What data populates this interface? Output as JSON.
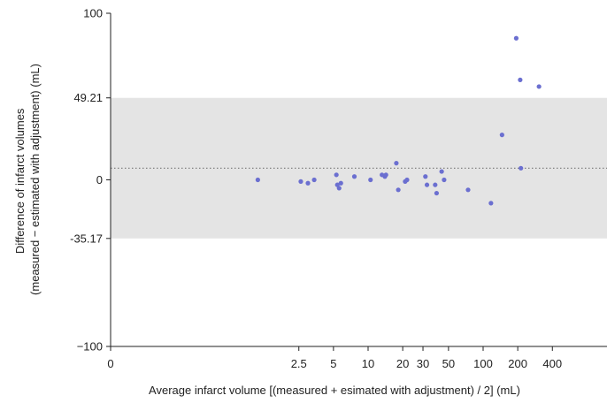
{
  "chart_data": {
    "type": "scatter",
    "title": "",
    "xlabel": "Average infarct volume [(measured + esimated with adjustment) / 2] (mL)",
    "ylabel_lines": [
      "Difference of infarct volumes",
      "(measured − estimated with adjustment) (mL)"
    ],
    "x_scale": "log",
    "x_ticks": [
      {
        "value": 0,
        "label": "0"
      },
      {
        "value": 2.5,
        "label": "2.5"
      },
      {
        "value": 5,
        "label": "5"
      },
      {
        "value": 10,
        "label": "10"
      },
      {
        "value": 20,
        "label": "20"
      },
      {
        "value": 30,
        "label": "30"
      },
      {
        "value": 50,
        "label": "50"
      },
      {
        "value": 100,
        "label": "100"
      },
      {
        "value": 200,
        "label": "200"
      },
      {
        "value": 400,
        "label": "400"
      }
    ],
    "y_ticks": [
      {
        "value": 100,
        "label": "100"
      },
      {
        "value": 49.21,
        "label": "49.21"
      },
      {
        "value": 0,
        "label": "0"
      },
      {
        "value": -35.17,
        "label": "-35.17"
      },
      {
        "value": -100,
        "label": "−100"
      }
    ],
    "ylim": [
      -100,
      100
    ],
    "limits_of_agreement": {
      "upper": 49.21,
      "lower": -35.17
    },
    "mean_difference": 7,
    "colors": {
      "points": "#6b6fd0",
      "band": "#e4e4e4",
      "mean_line": "#777777",
      "axis": "#222222"
    },
    "series": [
      {
        "points": [
          {
            "x": 1.1,
            "y": 0
          },
          {
            "x": 2.6,
            "y": -1
          },
          {
            "x": 3.0,
            "y": -2
          },
          {
            "x": 3.4,
            "y": 0
          },
          {
            "x": 5.3,
            "y": 3
          },
          {
            "x": 5.4,
            "y": -3
          },
          {
            "x": 5.6,
            "y": -5
          },
          {
            "x": 5.8,
            "y": -2
          },
          {
            "x": 7.6,
            "y": 2
          },
          {
            "x": 10.5,
            "y": 0
          },
          {
            "x": 13.2,
            "y": 3
          },
          {
            "x": 14.0,
            "y": 2
          },
          {
            "x": 14.3,
            "y": 3
          },
          {
            "x": 17.6,
            "y": 10
          },
          {
            "x": 18.3,
            "y": -6
          },
          {
            "x": 21.0,
            "y": -1
          },
          {
            "x": 21.8,
            "y": 0
          },
          {
            "x": 31.5,
            "y": 2
          },
          {
            "x": 32.5,
            "y": -3
          },
          {
            "x": 38.3,
            "y": -3
          },
          {
            "x": 39.4,
            "y": -8
          },
          {
            "x": 43.6,
            "y": 5
          },
          {
            "x": 45.8,
            "y": 0
          },
          {
            "x": 74.0,
            "y": -6
          },
          {
            "x": 117,
            "y": -14
          },
          {
            "x": 146,
            "y": 27
          },
          {
            "x": 194,
            "y": 85
          },
          {
            "x": 210,
            "y": 60
          },
          {
            "x": 213,
            "y": 7
          },
          {
            "x": 306,
            "y": 56
          }
        ]
      }
    ]
  }
}
